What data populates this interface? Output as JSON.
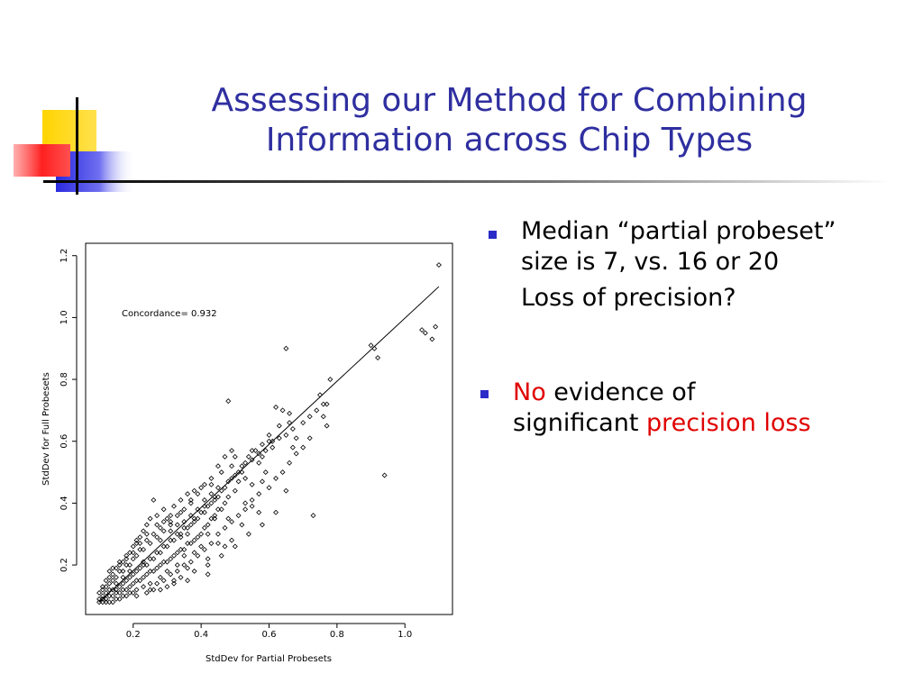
{
  "slide": {
    "title_line1": "Assessing our Method for Combining",
    "title_line2": "Information across Chip Types",
    "bullet1": {
      "line1": "Median “partial probeset”",
      "line2": "size is 7, vs. 16 or 20",
      "line3": "Loss of precision?"
    },
    "bullet2": {
      "red_word": "No",
      "rest_line1": " evidence of",
      "line2_prefix": "significant ",
      "red_phrase": "precision loss"
    }
  },
  "colors": {
    "title": "#2f2fa0",
    "bullet": "#2b2bc8",
    "emphasis": "#e00000",
    "deco_yellow": "#ffd400",
    "deco_blue": "#2a2ae0",
    "deco_red": "#ff2020"
  },
  "chart_data": {
    "type": "scatter",
    "title": "",
    "xlabel": "StdDev for Partial Probesets",
    "ylabel": "StdDev for Full Probesets",
    "xlim": [
      0.06,
      1.14
    ],
    "ylim": [
      0.04,
      1.24
    ],
    "xticks": [
      0.2,
      0.4,
      0.6,
      0.8,
      1.0
    ],
    "xtick_labels": [
      "0.2",
      "0.4",
      "0.6",
      "0.8",
      "1.0"
    ],
    "yticks": [
      0.2,
      0.4,
      0.6,
      0.8,
      1.0,
      1.2
    ],
    "ytick_labels": [
      "0.2",
      "0.4",
      "0.6",
      "0.8",
      "1.0",
      "1.2"
    ],
    "annotation": "Concordance= 0.932",
    "grid": false,
    "marker": "diamond",
    "fit_line": {
      "x": [
        0.1,
        1.1
      ],
      "y": [
        0.08,
        1.1
      ]
    },
    "points": [
      [
        1.1,
        1.17
      ],
      [
        0.65,
        0.9
      ],
      [
        0.9,
        0.91
      ],
      [
        0.91,
        0.9
      ],
      [
        1.05,
        0.96
      ],
      [
        1.06,
        0.95
      ],
      [
        1.09,
        0.97
      ],
      [
        1.08,
        0.93
      ],
      [
        0.92,
        0.87
      ],
      [
        0.48,
        0.73
      ],
      [
        0.94,
        0.49
      ],
      [
        0.73,
        0.36
      ],
      [
        0.78,
        0.8
      ],
      [
        0.75,
        0.75
      ],
      [
        0.77,
        0.72
      ],
      [
        0.62,
        0.71
      ],
      [
        0.64,
        0.7
      ],
      [
        0.66,
        0.69
      ],
      [
        0.66,
        0.66
      ],
      [
        0.76,
        0.68
      ],
      [
        0.77,
        0.65
      ],
      [
        0.63,
        0.65
      ],
      [
        0.6,
        0.62
      ],
      [
        0.61,
        0.6
      ],
      [
        0.68,
        0.61
      ],
      [
        0.67,
        0.58
      ],
      [
        0.65,
        0.44
      ],
      [
        0.59,
        0.5
      ],
      [
        0.55,
        0.57
      ],
      [
        0.58,
        0.55
      ],
      [
        0.5,
        0.55
      ],
      [
        0.52,
        0.5
      ],
      [
        0.55,
        0.46
      ],
      [
        0.58,
        0.47
      ],
      [
        0.45,
        0.45
      ],
      [
        0.48,
        0.42
      ],
      [
        0.44,
        0.35
      ],
      [
        0.48,
        0.35
      ],
      [
        0.53,
        0.4
      ],
      [
        0.55,
        0.39
      ],
      [
        0.57,
        0.37
      ],
      [
        0.52,
        0.33
      ],
      [
        0.49,
        0.28
      ],
      [
        0.47,
        0.26
      ],
      [
        0.42,
        0.3
      ],
      [
        0.4,
        0.26
      ],
      [
        0.38,
        0.24
      ],
      [
        0.35,
        0.23
      ],
      [
        0.33,
        0.2
      ],
      [
        0.3,
        0.18
      ],
      [
        0.28,
        0.16
      ],
      [
        0.25,
        0.14
      ],
      [
        0.26,
        0.12
      ],
      [
        0.32,
        0.15
      ],
      [
        0.36,
        0.19
      ],
      [
        0.42,
        0.22
      ],
      [
        0.45,
        0.27
      ],
      [
        0.26,
        0.41
      ],
      [
        0.29,
        0.38
      ],
      [
        0.31,
        0.36
      ],
      [
        0.34,
        0.37
      ],
      [
        0.37,
        0.4
      ],
      [
        0.4,
        0.45
      ],
      [
        0.43,
        0.46
      ],
      [
        0.46,
        0.5
      ],
      [
        0.49,
        0.52
      ],
      [
        0.51,
        0.47
      ],
      [
        0.44,
        0.41
      ],
      [
        0.41,
        0.39
      ],
      [
        0.38,
        0.34
      ],
      [
        0.36,
        0.3
      ],
      [
        0.34,
        0.29
      ],
      [
        0.31,
        0.31
      ],
      [
        0.28,
        0.28
      ],
      [
        0.27,
        0.33
      ],
      [
        0.24,
        0.3
      ],
      [
        0.22,
        0.25
      ],
      [
        0.21,
        0.27
      ],
      [
        0.23,
        0.21
      ],
      [
        0.2,
        0.22
      ],
      [
        0.19,
        0.18
      ],
      [
        0.18,
        0.2
      ],
      [
        0.17,
        0.16
      ],
      [
        0.16,
        0.18
      ],
      [
        0.15,
        0.14
      ],
      [
        0.14,
        0.15
      ],
      [
        0.13,
        0.12
      ],
      [
        0.12,
        0.11
      ],
      [
        0.11,
        0.1
      ],
      [
        0.1,
        0.09
      ],
      [
        0.12,
        0.13
      ],
      [
        0.14,
        0.12
      ],
      [
        0.16,
        0.13
      ],
      [
        0.18,
        0.15
      ],
      [
        0.2,
        0.17
      ],
      [
        0.22,
        0.19
      ],
      [
        0.24,
        0.2
      ],
      [
        0.26,
        0.22
      ],
      [
        0.28,
        0.24
      ],
      [
        0.3,
        0.26
      ],
      [
        0.32,
        0.28
      ],
      [
        0.34,
        0.3
      ],
      [
        0.36,
        0.32
      ],
      [
        0.38,
        0.35
      ],
      [
        0.4,
        0.37
      ],
      [
        0.42,
        0.39
      ],
      [
        0.44,
        0.42
      ],
      [
        0.46,
        0.44
      ],
      [
        0.48,
        0.47
      ],
      [
        0.5,
        0.49
      ],
      [
        0.52,
        0.52
      ],
      [
        0.54,
        0.55
      ],
      [
        0.56,
        0.57
      ],
      [
        0.58,
        0.59
      ],
      [
        0.6,
        0.6
      ],
      [
        0.57,
        0.53
      ],
      [
        0.53,
        0.48
      ],
      [
        0.5,
        0.44
      ],
      [
        0.47,
        0.4
      ],
      [
        0.45,
        0.38
      ],
      [
        0.43,
        0.35
      ],
      [
        0.41,
        0.32
      ],
      [
        0.39,
        0.29
      ],
      [
        0.37,
        0.27
      ],
      [
        0.35,
        0.25
      ],
      [
        0.33,
        0.24
      ],
      [
        0.31,
        0.22
      ],
      [
        0.29,
        0.21
      ],
      [
        0.27,
        0.19
      ],
      [
        0.25,
        0.18
      ],
      [
        0.23,
        0.16
      ],
      [
        0.21,
        0.15
      ],
      [
        0.19,
        0.13
      ],
      [
        0.17,
        0.12
      ],
      [
        0.15,
        0.11
      ],
      [
        0.13,
        0.1
      ],
      [
        0.11,
        0.09
      ],
      [
        0.1,
        0.11
      ],
      [
        0.11,
        0.13
      ],
      [
        0.12,
        0.15
      ],
      [
        0.13,
        0.16
      ],
      [
        0.14,
        0.17
      ],
      [
        0.15,
        0.19
      ],
      [
        0.16,
        0.2
      ],
      [
        0.17,
        0.21
      ],
      [
        0.18,
        0.23
      ],
      [
        0.19,
        0.24
      ],
      [
        0.2,
        0.26
      ],
      [
        0.21,
        0.28
      ],
      [
        0.22,
        0.29
      ],
      [
        0.23,
        0.31
      ],
      [
        0.24,
        0.33
      ],
      [
        0.25,
        0.35
      ],
      [
        0.27,
        0.36
      ],
      [
        0.29,
        0.34
      ],
      [
        0.31,
        0.33
      ],
      [
        0.33,
        0.33
      ],
      [
        0.35,
        0.34
      ],
      [
        0.37,
        0.36
      ],
      [
        0.39,
        0.38
      ],
      [
        0.41,
        0.41
      ],
      [
        0.43,
        0.43
      ],
      [
        0.12,
        0.09
      ],
      [
        0.14,
        0.1
      ],
      [
        0.16,
        0.11
      ],
      [
        0.18,
        0.12
      ],
      [
        0.2,
        0.14
      ],
      [
        0.22,
        0.15
      ],
      [
        0.24,
        0.17
      ],
      [
        0.26,
        0.18
      ],
      [
        0.28,
        0.2
      ],
      [
        0.3,
        0.21
      ],
      [
        0.32,
        0.23
      ],
      [
        0.34,
        0.25
      ],
      [
        0.36,
        0.27
      ],
      [
        0.38,
        0.28
      ],
      [
        0.4,
        0.3
      ],
      [
        0.42,
        0.33
      ],
      [
        0.44,
        0.36
      ],
      [
        0.46,
        0.38
      ],
      [
        0.23,
        0.13
      ],
      [
        0.25,
        0.12
      ],
      [
        0.27,
        0.14
      ],
      [
        0.29,
        0.15
      ],
      [
        0.31,
        0.17
      ],
      [
        0.33,
        0.18
      ],
      [
        0.35,
        0.2
      ],
      [
        0.37,
        0.21
      ],
      [
        0.39,
        0.23
      ],
      [
        0.41,
        0.25
      ],
      [
        0.43,
        0.27
      ],
      [
        0.45,
        0.3
      ],
      [
        0.47,
        0.32
      ],
      [
        0.49,
        0.34
      ],
      [
        0.51,
        0.36
      ],
      [
        0.53,
        0.38
      ],
      [
        0.55,
        0.41
      ],
      [
        0.57,
        0.43
      ],
      [
        0.6,
        0.45
      ],
      [
        0.62,
        0.48
      ],
      [
        0.64,
        0.5
      ],
      [
        0.66,
        0.53
      ],
      [
        0.68,
        0.56
      ],
      [
        0.7,
        0.58
      ],
      [
        0.72,
        0.61
      ],
      [
        0.17,
        0.1
      ],
      [
        0.19,
        0.11
      ],
      [
        0.21,
        0.12
      ],
      [
        0.14,
        0.08
      ],
      [
        0.16,
        0.09
      ],
      [
        0.18,
        0.1
      ],
      [
        0.2,
        0.11
      ],
      [
        0.12,
        0.08
      ],
      [
        0.1,
        0.08
      ],
      [
        0.11,
        0.12
      ],
      [
        0.13,
        0.14
      ],
      [
        0.15,
        0.16
      ],
      [
        0.17,
        0.18
      ],
      [
        0.19,
        0.2
      ],
      [
        0.21,
        0.23
      ],
      [
        0.23,
        0.25
      ],
      [
        0.25,
        0.27
      ],
      [
        0.27,
        0.29
      ],
      [
        0.29,
        0.31
      ],
      [
        0.31,
        0.34
      ],
      [
        0.33,
        0.36
      ],
      [
        0.35,
        0.38
      ],
      [
        0.37,
        0.41
      ],
      [
        0.39,
        0.43
      ],
      [
        0.41,
        0.46
      ],
      [
        0.43,
        0.48
      ],
      [
        0.45,
        0.52
      ],
      [
        0.47,
        0.55
      ],
      [
        0.49,
        0.57
      ],
      [
        0.15,
        0.12
      ],
      [
        0.17,
        0.14
      ],
      [
        0.19,
        0.16
      ],
      [
        0.21,
        0.18
      ],
      [
        0.23,
        0.2
      ],
      [
        0.25,
        0.22
      ],
      [
        0.27,
        0.24
      ],
      [
        0.29,
        0.26
      ],
      [
        0.31,
        0.28
      ],
      [
        0.33,
        0.3
      ],
      [
        0.35,
        0.32
      ],
      [
        0.37,
        0.33
      ],
      [
        0.39,
        0.35
      ],
      [
        0.41,
        0.37
      ],
      [
        0.43,
        0.4
      ],
      [
        0.45,
        0.42
      ],
      [
        0.47,
        0.45
      ],
      [
        0.49,
        0.48
      ],
      [
        0.51,
        0.5
      ],
      [
        0.53,
        0.53
      ],
      [
        0.55,
        0.54
      ],
      [
        0.57,
        0.56
      ],
      [
        0.59,
        0.57
      ],
      [
        0.61,
        0.58
      ],
      [
        0.63,
        0.61
      ],
      [
        0.65,
        0.62
      ],
      [
        0.67,
        0.64
      ],
      [
        0.7,
        0.66
      ],
      [
        0.72,
        0.68
      ],
      [
        0.74,
        0.7
      ],
      [
        0.76,
        0.72
      ],
      [
        0.38,
        0.44
      ],
      [
        0.36,
        0.43
      ],
      [
        0.34,
        0.41
      ],
      [
        0.32,
        0.39
      ],
      [
        0.3,
        0.35
      ],
      [
        0.28,
        0.32
      ],
      [
        0.26,
        0.3
      ],
      [
        0.24,
        0.28
      ],
      [
        0.22,
        0.27
      ],
      [
        0.2,
        0.24
      ],
      [
        0.18,
        0.22
      ],
      [
        0.16,
        0.21
      ],
      [
        0.14,
        0.19
      ],
      [
        0.13,
        0.18
      ],
      [
        0.3,
        0.13
      ],
      [
        0.34,
        0.16
      ],
      [
        0.38,
        0.18
      ],
      [
        0.42,
        0.2
      ],
      [
        0.46,
        0.23
      ],
      [
        0.5,
        0.26
      ],
      [
        0.54,
        0.3
      ],
      [
        0.58,
        0.33
      ],
      [
        0.62,
        0.37
      ],
      [
        0.28,
        0.12
      ],
      [
        0.24,
        0.11
      ],
      [
        0.21,
        0.1
      ],
      [
        0.15,
        0.09
      ],
      [
        0.13,
        0.08
      ],
      [
        0.11,
        0.08
      ],
      [
        0.42,
        0.17
      ],
      [
        0.36,
        0.15
      ],
      [
        0.32,
        0.14
      ]
    ]
  }
}
